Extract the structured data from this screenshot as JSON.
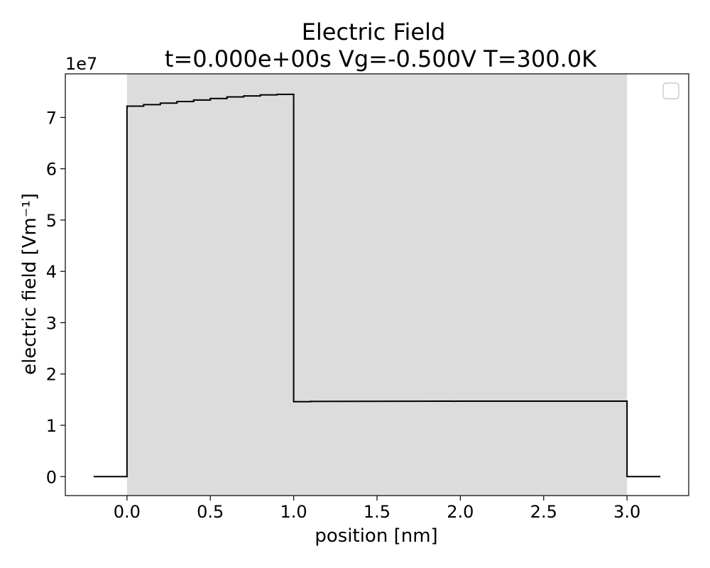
{
  "chart_data": {
    "type": "line",
    "title": "Electric Field",
    "subtitle": "t=0.000e+00s Vg=-0.500V T=300.0K",
    "xlabel": "position [nm]",
    "ylabel": "electric field [Vm⁻¹]",
    "y_offset_label": "1e7",
    "y_multiplier": 10000000,
    "xlim": [
      -0.37,
      3.37
    ],
    "ylim": [
      -0.37,
      7.85
    ],
    "x_ticks": [
      0.0,
      0.5,
      1.0,
      1.5,
      2.0,
      2.5,
      3.0
    ],
    "x_tick_labels": [
      "0.0",
      "0.5",
      "1.0",
      "1.5",
      "2.0",
      "2.5",
      "3.0"
    ],
    "y_ticks": [
      0,
      1,
      2,
      3,
      4,
      5,
      6,
      7
    ],
    "y_tick_labels": [
      "0",
      "1",
      "2",
      "3",
      "4",
      "5",
      "6",
      "7"
    ],
    "shaded_region": {
      "x_start": 0.0,
      "x_end": 3.0,
      "color": "#dcdcdc"
    },
    "grid": false,
    "legend": {
      "placement": "top-right",
      "entries": []
    },
    "series": [
      {
        "color": "#000000",
        "x": [
          -0.2,
          0.0,
          0.0,
          0.1,
          0.1,
          0.2,
          0.2,
          0.3,
          0.3,
          0.4,
          0.4,
          0.5,
          0.5,
          0.6,
          0.6,
          0.7,
          0.7,
          0.8,
          0.8,
          0.9,
          0.9,
          1.0,
          1.0,
          1.1,
          1.1,
          2.0,
          3.0,
          3.0,
          3.2
        ],
        "y": [
          0.0,
          0.0,
          7.22,
          7.22,
          7.25,
          7.25,
          7.28,
          7.28,
          7.31,
          7.31,
          7.34,
          7.34,
          7.37,
          7.37,
          7.4,
          7.4,
          7.42,
          7.42,
          7.44,
          7.44,
          7.45,
          7.45,
          1.46,
          1.46,
          1.465,
          1.47,
          1.47,
          0.0,
          0.0
        ]
      }
    ]
  }
}
